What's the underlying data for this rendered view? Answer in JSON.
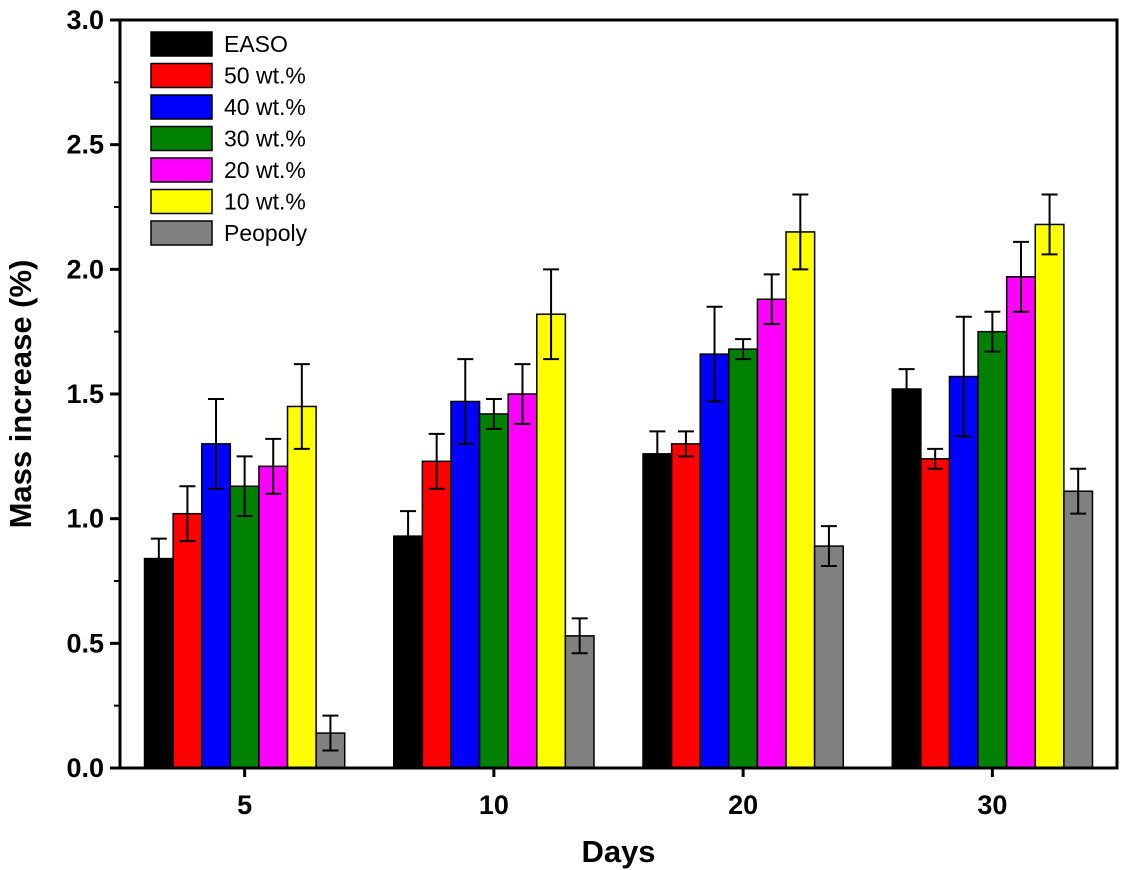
{
  "chart_data": {
    "type": "bar",
    "title": "",
    "xlabel": "Days",
    "ylabel": "Mass increase (%)",
    "categories": [
      "5",
      "10",
      "20",
      "30"
    ],
    "ylim": [
      0,
      3.0
    ],
    "yticks": [
      "0.0",
      "0.5",
      "1.0",
      "1.5",
      "2.0",
      "2.5",
      "3.0"
    ],
    "legend_position": "top-left",
    "grid": false,
    "series": [
      {
        "name": "EASO",
        "color": "#000000",
        "values": [
          0.84,
          0.93,
          1.26,
          1.52
        ],
        "errors": [
          0.08,
          0.1,
          0.09,
          0.08
        ]
      },
      {
        "name": "50 wt.%",
        "color": "#ff0000",
        "values": [
          1.02,
          1.23,
          1.3,
          1.24
        ],
        "errors": [
          0.11,
          0.11,
          0.05,
          0.04
        ]
      },
      {
        "name": "40 wt.%",
        "color": "#0000ff",
        "values": [
          1.3,
          1.47,
          1.66,
          1.57
        ],
        "errors": [
          0.18,
          0.17,
          0.19,
          0.24
        ]
      },
      {
        "name": "30 wt.%",
        "color": "#008000",
        "values": [
          1.13,
          1.42,
          1.68,
          1.75
        ],
        "errors": [
          0.12,
          0.06,
          0.04,
          0.08
        ]
      },
      {
        "name": "20 wt.%",
        "color": "#ff00ff",
        "values": [
          1.21,
          1.5,
          1.88,
          1.97
        ],
        "errors": [
          0.11,
          0.12,
          0.1,
          0.14
        ]
      },
      {
        "name": "10 wt.%",
        "color": "#ffff00",
        "values": [
          1.45,
          1.82,
          2.15,
          2.18
        ],
        "errors": [
          0.17,
          0.18,
          0.15,
          0.12
        ]
      },
      {
        "name": "Peopoly",
        "color": "#808080",
        "values": [
          0.14,
          0.53,
          0.89,
          1.11
        ],
        "errors": [
          0.07,
          0.07,
          0.08,
          0.09
        ]
      }
    ]
  }
}
